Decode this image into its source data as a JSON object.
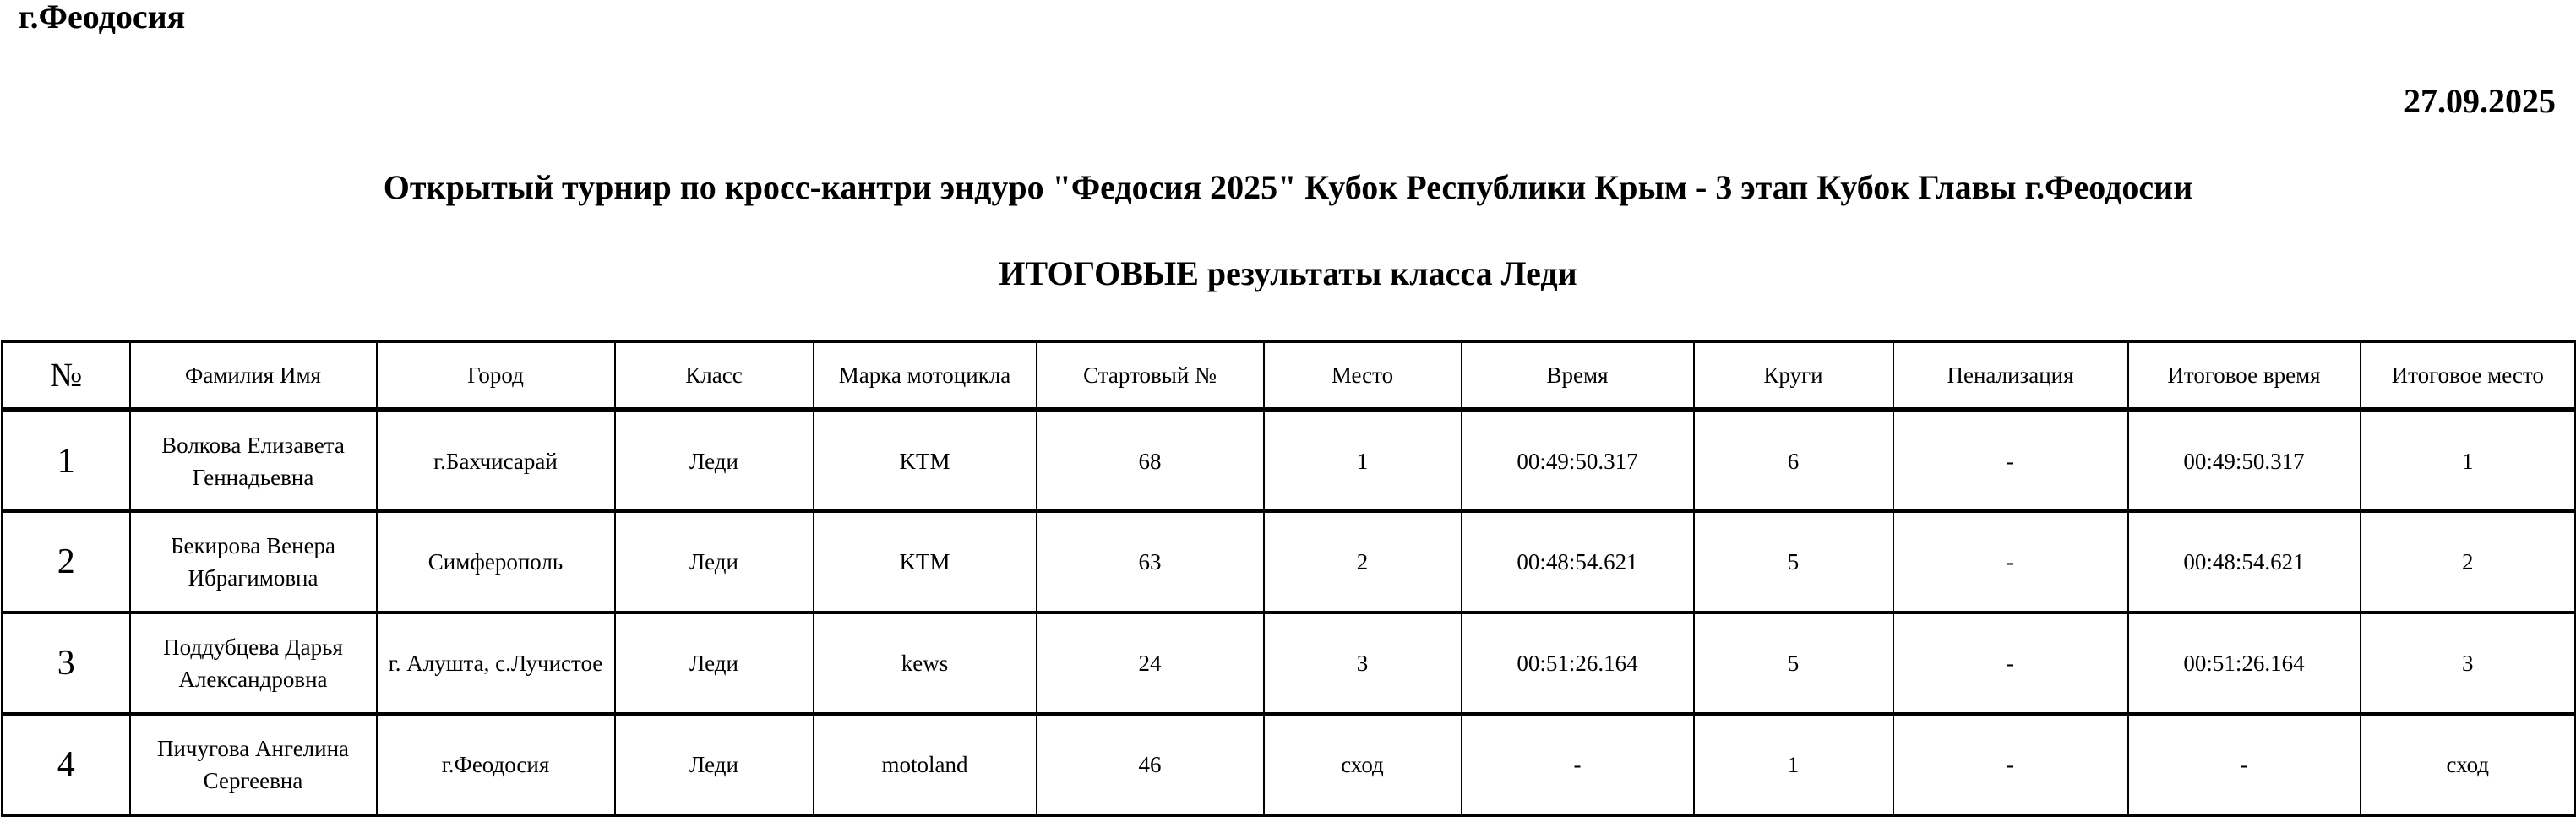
{
  "header": {
    "city": "г.Феодосия",
    "date": "27.09.2025",
    "title": "Открытый турнир по кросс-кантри эндуро \"Федосия 2025\" Кубок Республики Крым - 3 этап Кубок Главы г.Феодосии",
    "subtitle": "ИТОГОВЫЕ результаты класса Леди"
  },
  "table": {
    "columns": [
      "№",
      "Фамилия Имя",
      "Город",
      "Класс",
      "Марка мотоцикла",
      "Стартовый №",
      "Место",
      "Время",
      "Круги",
      "Пенализация",
      "Итоговое время",
      "Итоговое место"
    ],
    "rows": [
      [
        "1",
        "Волкова Елизавета Геннадьевна",
        "г.Бахчисарай",
        "Леди",
        "KTM",
        "68",
        "1",
        "00:49:50.317",
        "6",
        "-",
        "00:49:50.317",
        "1"
      ],
      [
        "2",
        "Бекирова Венера Ибрагимовна",
        "Симферополь",
        "Леди",
        "KTM",
        "63",
        "2",
        "00:48:54.621",
        "5",
        "-",
        "00:48:54.621",
        "2"
      ],
      [
        "3",
        "Поддубцева Дарья Александровна",
        "г. Алушта, с.Лучистое",
        "Леди",
        "kews",
        "24",
        "3",
        "00:51:26.164",
        "5",
        "-",
        "00:51:26.164",
        "3"
      ],
      [
        "4",
        "Пичугова Ангелина Сергеевна",
        "г.Феодосия",
        "Леди",
        "motoland",
        "46",
        "сход",
        "-",
        "1",
        "-",
        "-",
        "сход"
      ]
    ]
  }
}
